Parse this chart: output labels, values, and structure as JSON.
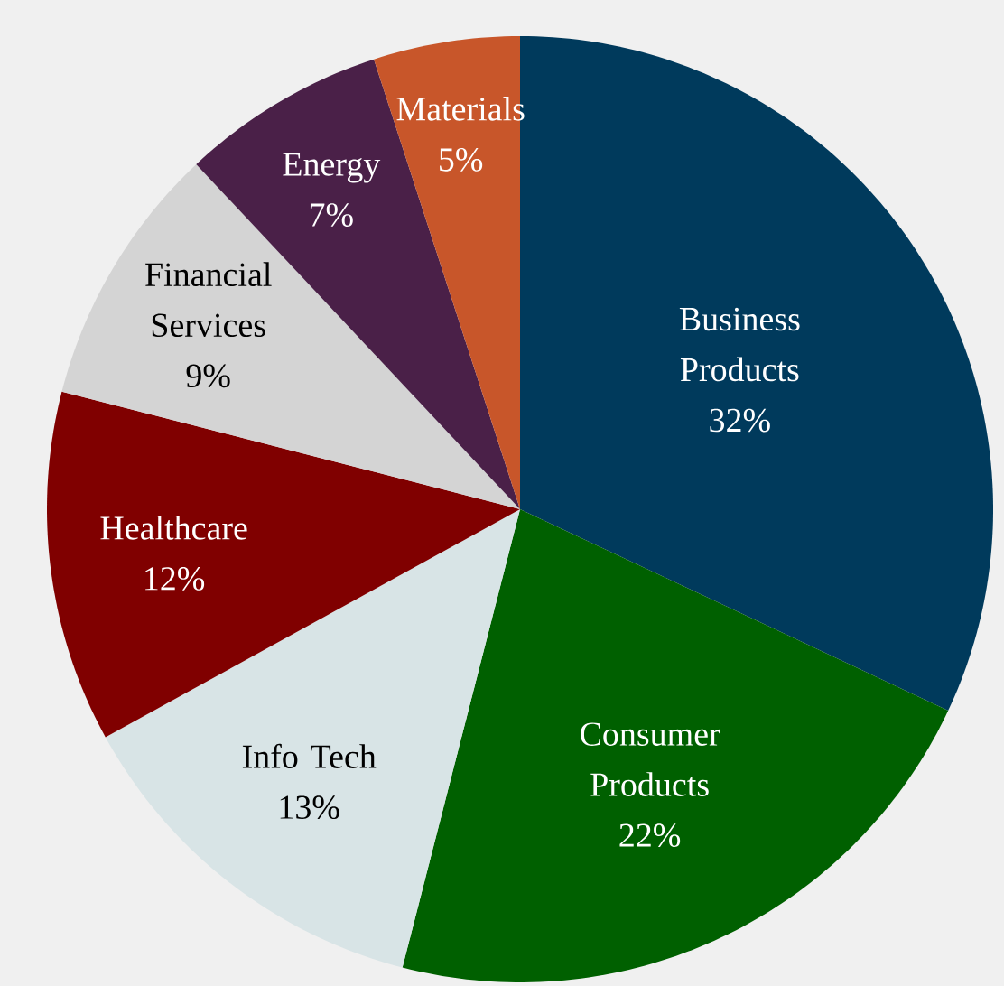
{
  "chart_data": {
    "type": "pie",
    "categories": [
      "Business Products",
      "Consumer Products",
      "Info Tech",
      "Healthcare",
      "Financial Services",
      "Energy",
      "Materials"
    ],
    "values": [
      32,
      22,
      13,
      12,
      9,
      7,
      5
    ],
    "value_labels": [
      "32%",
      "22%",
      "13%",
      "12%",
      "9%",
      "7%",
      "5%"
    ],
    "colors": [
      "#003a5c",
      "#006000",
      "#d8e4e6",
      "#800000",
      "#d4d4d4",
      "#4a2048",
      "#c8562a"
    ]
  }
}
